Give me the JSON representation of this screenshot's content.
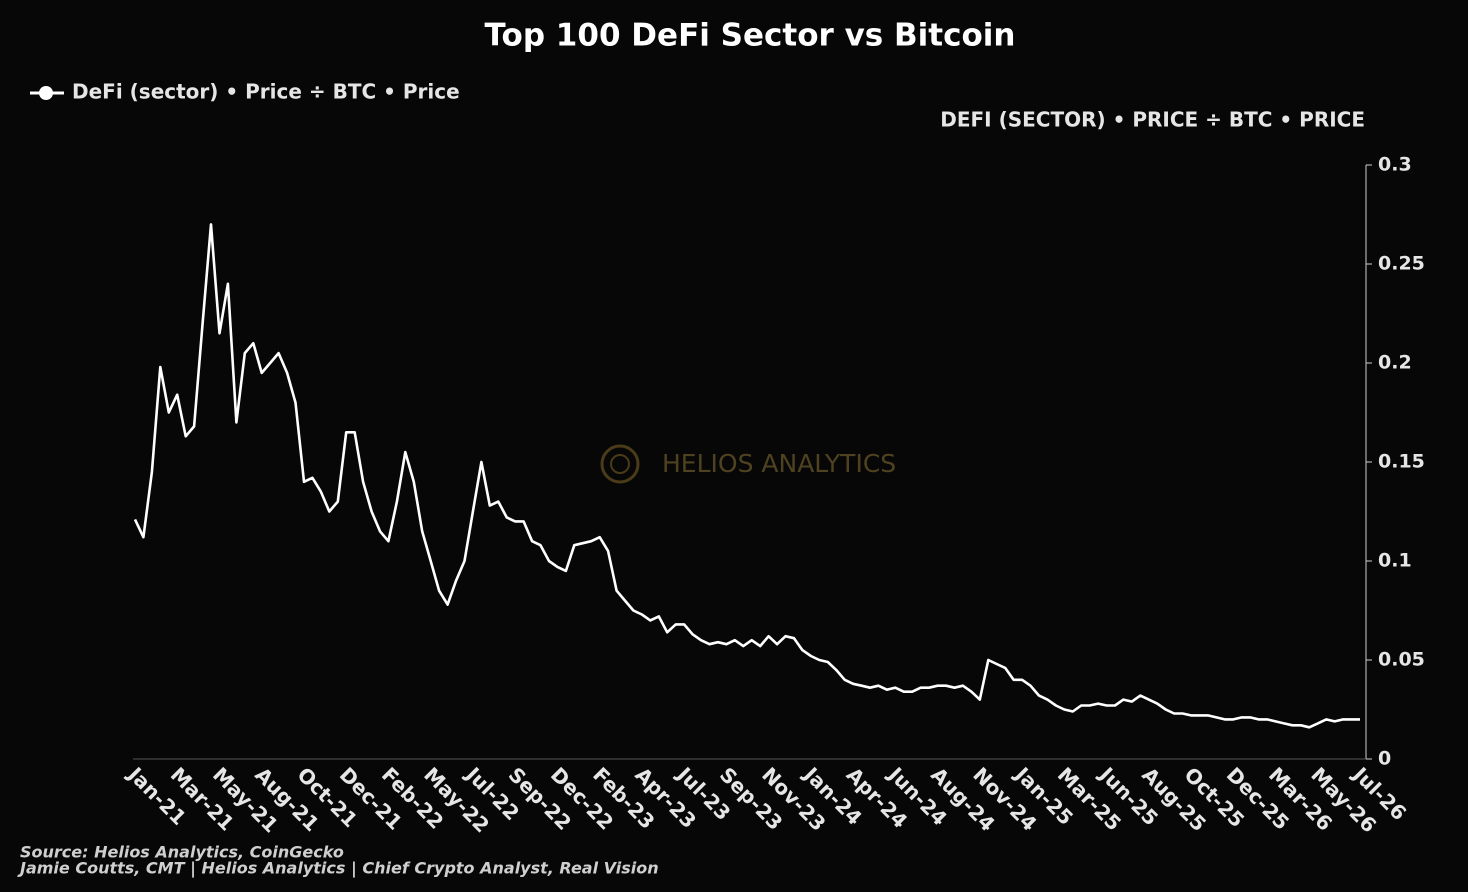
{
  "chart_data": {
    "type": "line",
    "title": "Top 100 DeFi Sector vs Bitcoin",
    "y_axis_label": "DEFI (SECTOR) • PRICE ÷ BTC • PRICE",
    "watermark": "HELIOS ANALYTICS",
    "source": "Source: Helios Analytics, CoinGecko",
    "credit": "Jamie Coutts, CMT | Helios Analytics | Chief Crypto Analyst, Real Vision",
    "legend": "top-left",
    "ylim": [
      0,
      0.3
    ],
    "yticks": [
      0,
      0.05,
      0.1,
      0.15,
      0.2,
      0.25,
      0.3
    ],
    "categories": [
      "Jan-21",
      null,
      null,
      null,
      null,
      "Mar-21",
      null,
      null,
      null,
      null,
      "May-21",
      null,
      null,
      null,
      null,
      "Aug-21",
      null,
      null,
      null,
      null,
      "Oct-21",
      null,
      null,
      null,
      null,
      "Dec-21",
      null,
      null,
      null,
      null,
      "Feb-22",
      null,
      null,
      null,
      null,
      "May-22",
      null,
      null,
      null,
      null,
      "Jul-22",
      null,
      null,
      null,
      null,
      "Sep-22",
      null,
      null,
      null,
      null,
      "Dec-22",
      null,
      null,
      null,
      null,
      "Feb-23",
      null,
      null,
      null,
      null,
      "Apr-23",
      null,
      null,
      null,
      null,
      "Jul-23",
      null,
      null,
      null,
      null,
      "Sep-23",
      null,
      null,
      null,
      null,
      "Nov-23",
      null,
      null,
      null,
      null,
      "Jan-24",
      null,
      null,
      null,
      null,
      "Apr-24",
      null,
      null,
      null,
      null,
      "Jun-24",
      null,
      null,
      null,
      null,
      "Aug-24",
      null,
      null,
      null,
      null,
      "Nov-24",
      null,
      null,
      null,
      null,
      "Jan-25",
      null,
      null,
      null,
      null,
      "Mar-25",
      null,
      null,
      null,
      null,
      "Jun-25",
      null,
      null,
      null,
      null,
      "Aug-25",
      null,
      null,
      null,
      null,
      "Oct-25",
      null,
      null,
      null,
      null,
      "Dec-25",
      null,
      null,
      null,
      null,
      "Mar-26",
      null,
      null,
      null,
      null,
      "May-26",
      null,
      null,
      null,
      null,
      "Jul-26"
    ],
    "series": [
      {
        "name": "DeFi (sector) • Price ÷ BTC • Price",
        "color": "#ffffff",
        "values": [
          0.121,
          0.112,
          0.145,
          0.198,
          0.175,
          0.184,
          0.163,
          0.168,
          0.22,
          0.27,
          0.215,
          0.24,
          0.17,
          0.205,
          0.21,
          0.195,
          0.2,
          0.205,
          0.195,
          0.18,
          0.14,
          0.142,
          0.135,
          0.125,
          0.13,
          0.165,
          0.165,
          0.14,
          0.125,
          0.115,
          0.11,
          0.13,
          0.155,
          0.14,
          0.115,
          0.1,
          0.085,
          0.078,
          0.09,
          0.1,
          0.125,
          0.15,
          0.128,
          0.13,
          0.122,
          0.12,
          0.12,
          0.11,
          0.108,
          0.1,
          0.097,
          0.095,
          0.108,
          0.109,
          0.11,
          0.112,
          0.105,
          0.085,
          0.08,
          0.075,
          0.073,
          0.07,
          0.072,
          0.064,
          0.068,
          0.068,
          0.063,
          0.06,
          0.058,
          0.059,
          0.058,
          0.06,
          0.057,
          0.06,
          0.057,
          0.062,
          0.058,
          0.062,
          0.061,
          0.055,
          0.052,
          0.05,
          0.049,
          0.045,
          0.04,
          0.038,
          0.037,
          0.036,
          0.037,
          0.035,
          0.036,
          0.034,
          0.034,
          0.036,
          0.036,
          0.037,
          0.037,
          0.036,
          0.037,
          0.034,
          0.03,
          0.05,
          0.048,
          0.046,
          0.04,
          0.04,
          0.037,
          0.032,
          0.03,
          0.027,
          0.025,
          0.024,
          0.027,
          0.027,
          0.028,
          0.027,
          0.027,
          0.03,
          0.029,
          0.032,
          0.03,
          0.028,
          0.025,
          0.023,
          0.023,
          0.022,
          0.022,
          0.022,
          0.021,
          0.02,
          0.02,
          0.021,
          0.021,
          0.02,
          0.02,
          0.019,
          0.018,
          0.017,
          0.017,
          0.016,
          0.018,
          0.02,
          0.019,
          0.02,
          0.02,
          0.02
        ]
      }
    ]
  }
}
